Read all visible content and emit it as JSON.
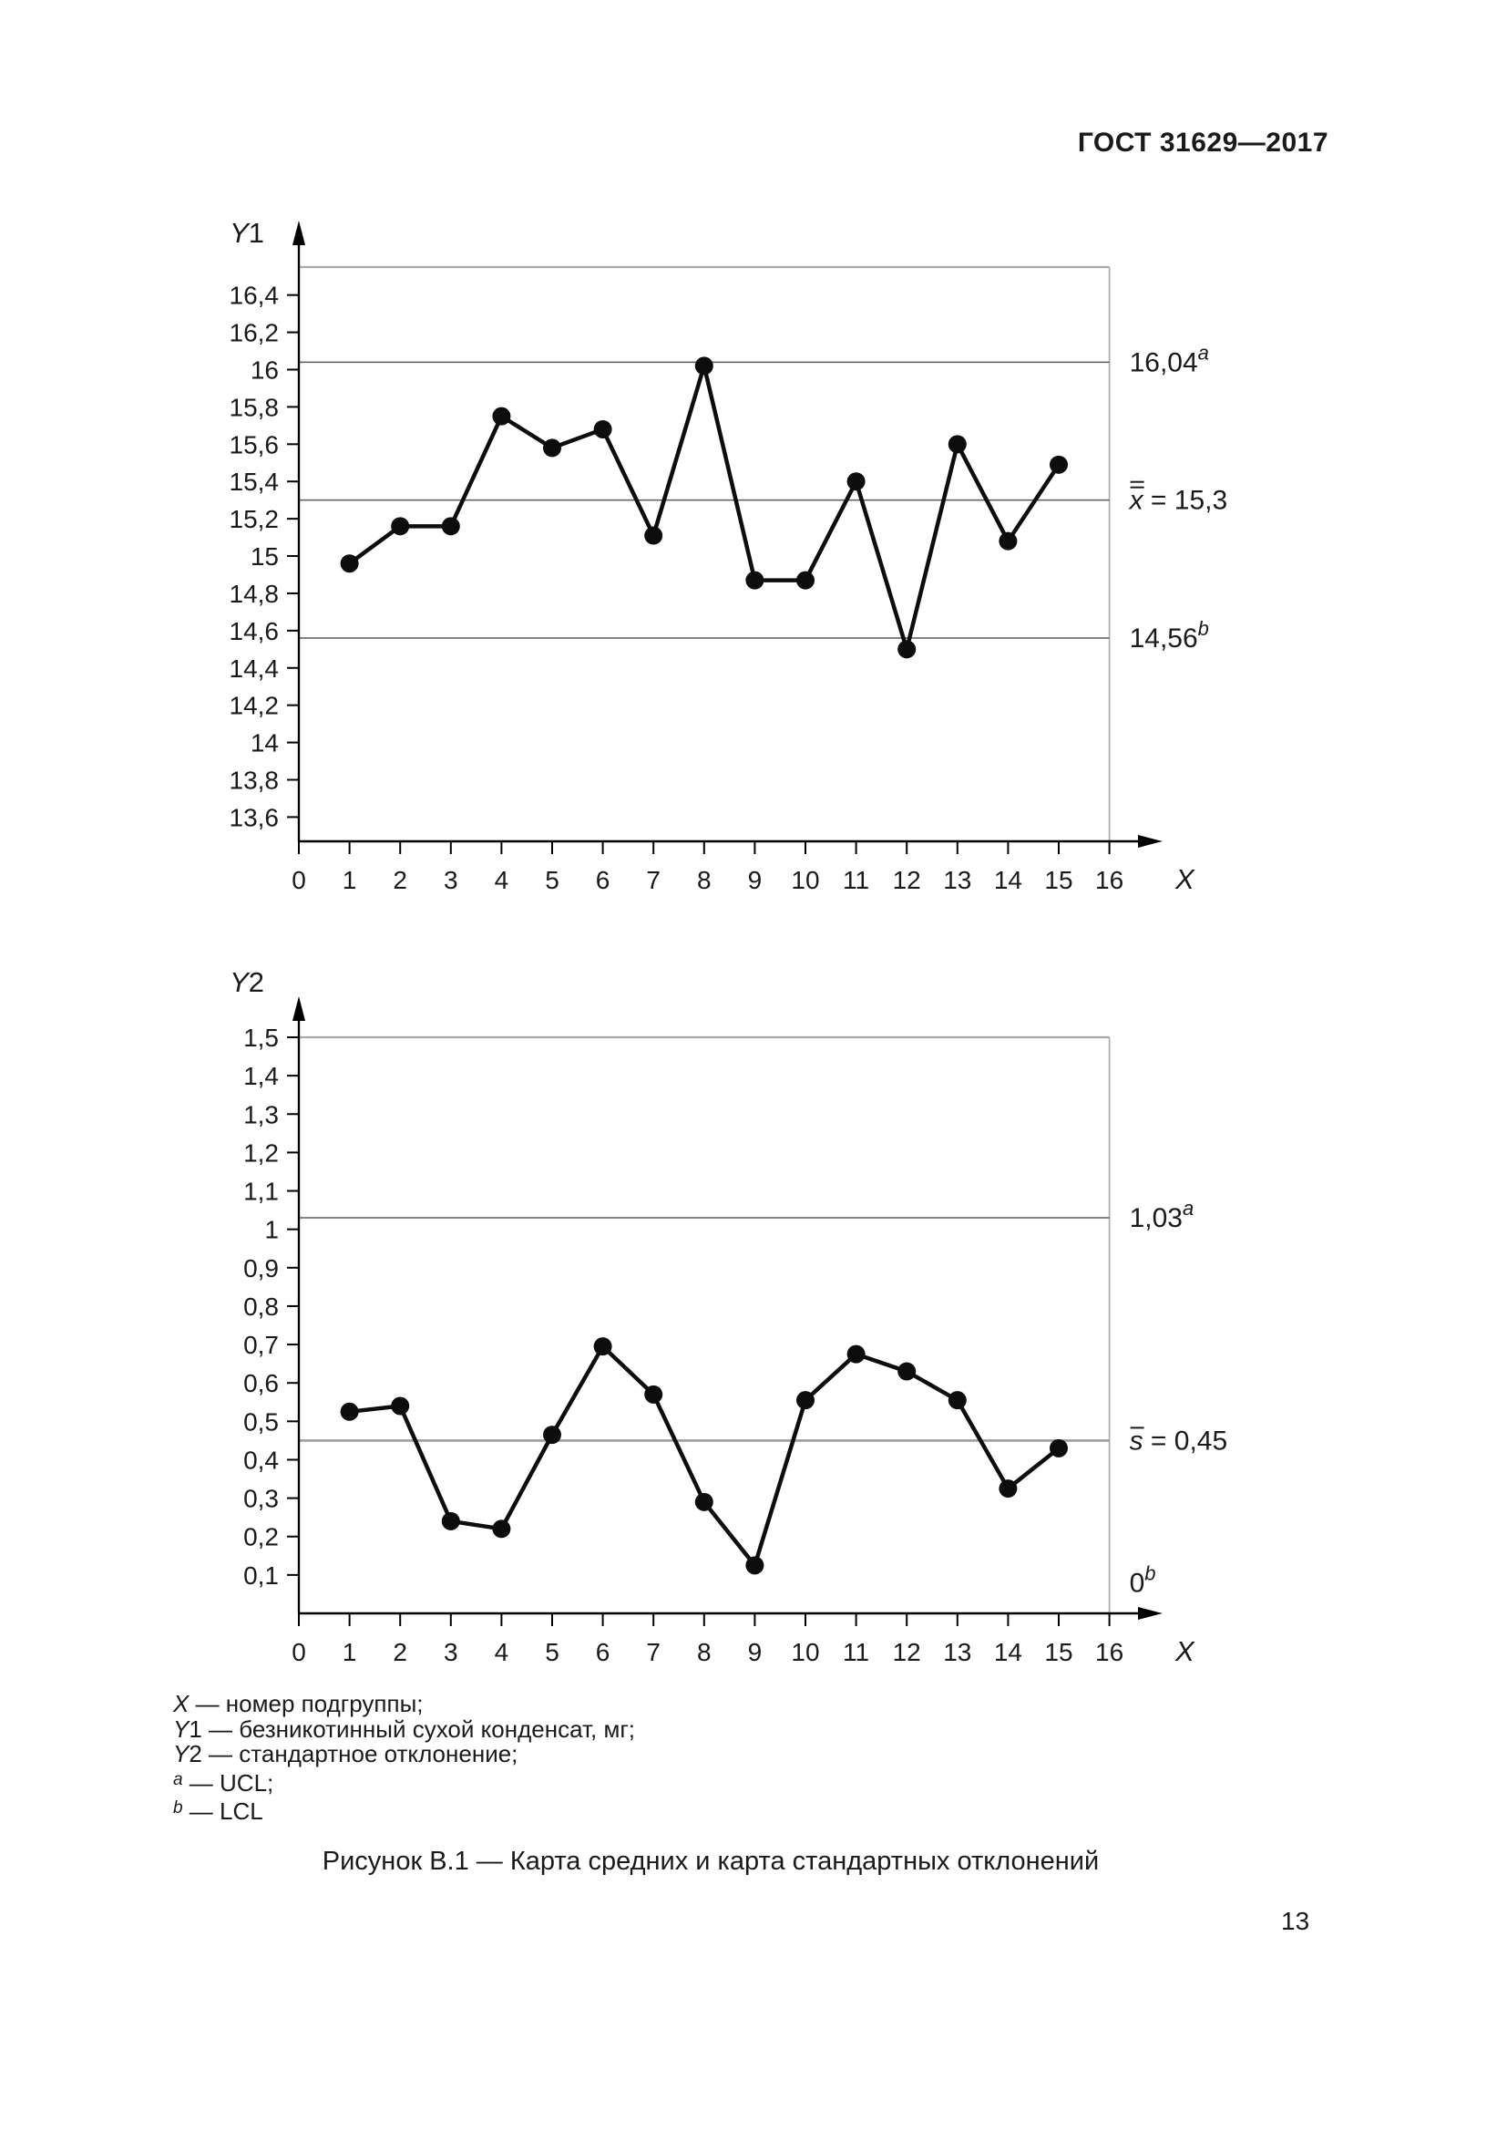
{
  "header": {
    "title": "ГОСТ 31629—2017"
  },
  "caption": "Рисунок В.1 — Карта средних и карта стандартных отклонений",
  "page_number": "13",
  "colors": {
    "text": "#1a1a1a",
    "axis": "#000000",
    "data": "#0d0d0d",
    "frame": "#a8a8a8",
    "limit_dark": "#5a5a5a",
    "center_gray": "#9e9e9e"
  },
  "legend": {
    "items": [
      {
        "prefix_italic": "X",
        "prefix_plain": "",
        "sup": "",
        "text": " — номер подгруппы;"
      },
      {
        "prefix_italic": "Y",
        "prefix_plain": "1",
        "sup": "",
        "text": " — безникотинный сухой конденсат, мг;"
      },
      {
        "prefix_italic": "Y",
        "prefix_plain": "2",
        "sup": "",
        "text": " — стандартное отклонение;"
      },
      {
        "prefix_italic": "",
        "prefix_plain": "",
        "sup": "a",
        "text": " — UCL;"
      },
      {
        "prefix_italic": "",
        "prefix_plain": "",
        "sup": "b",
        "text": " — LCL"
      }
    ]
  },
  "chart_data": [
    {
      "type": "line",
      "name": "mean-chart",
      "y_axis_title": "Y1",
      "x_axis_title": "X",
      "x": [
        1,
        2,
        3,
        4,
        5,
        6,
        7,
        8,
        9,
        10,
        11,
        12,
        13,
        14,
        15
      ],
      "values": [
        14.96,
        15.16,
        15.16,
        15.75,
        15.58,
        15.68,
        15.11,
        16.02,
        14.87,
        14.87,
        15.4,
        14.5,
        15.6,
        15.08,
        15.49
      ],
      "ylim": [
        13.47,
        16.55
      ],
      "xlim": [
        0,
        16
      ],
      "grid": "limits-only",
      "legend_position": "right",
      "yticks": [
        {
          "v": 16.4,
          "t": "16,4"
        },
        {
          "v": 16.2,
          "t": "16,2"
        },
        {
          "v": 16.0,
          "t": "16"
        },
        {
          "v": 15.8,
          "t": "15,8"
        },
        {
          "v": 15.6,
          "t": "15,6"
        },
        {
          "v": 15.4,
          "t": "15,4"
        },
        {
          "v": 15.2,
          "t": "15,2"
        },
        {
          "v": 15.0,
          "t": "15"
        },
        {
          "v": 14.8,
          "t": "14,8"
        },
        {
          "v": 14.6,
          "t": "14,6"
        },
        {
          "v": 14.4,
          "t": "14,4"
        },
        {
          "v": 14.2,
          "t": "14,2"
        },
        {
          "v": 14.0,
          "t": "14"
        },
        {
          "v": 13.8,
          "t": "13,8"
        },
        {
          "v": 13.6,
          "t": "13,6"
        }
      ],
      "xticks": [
        "0",
        "1",
        "2",
        "3",
        "4",
        "5",
        "6",
        "7",
        "8",
        "9",
        "10",
        "11",
        "12",
        "13",
        "14",
        "15",
        "16"
      ],
      "ref_lines": [
        {
          "v": 16.04,
          "text": "16,04",
          "sup": "a",
          "tone": "dark",
          "line": true
        },
        {
          "v": 15.3,
          "bar": "x",
          "bars": 2,
          "text": " = 15,3",
          "tone": "dark",
          "line": true
        },
        {
          "v": 14.56,
          "text": "14,56",
          "sup": "b",
          "tone": "dark",
          "line": true
        }
      ]
    },
    {
      "type": "line",
      "name": "stddev-chart",
      "y_axis_title": "Y2",
      "x_axis_title": "X",
      "x": [
        1,
        2,
        3,
        4,
        5,
        6,
        7,
        8,
        9,
        10,
        11,
        12,
        13,
        14,
        15
      ],
      "values": [
        0.525,
        0.54,
        0.24,
        0.22,
        0.465,
        0.695,
        0.57,
        0.29,
        0.125,
        0.555,
        0.675,
        0.63,
        0.555,
        0.325,
        0.43
      ],
      "ylim": [
        0,
        1.5
      ],
      "xlim": [
        0,
        16
      ],
      "grid": "limits-only",
      "legend_position": "right",
      "yticks": [
        {
          "v": 1.5,
          "t": "1,5"
        },
        {
          "v": 1.4,
          "t": "1,4"
        },
        {
          "v": 1.3,
          "t": "1,3"
        },
        {
          "v": 1.2,
          "t": "1,2"
        },
        {
          "v": 1.1,
          "t": "1,1"
        },
        {
          "v": 1.0,
          "t": "1"
        },
        {
          "v": 0.9,
          "t": "0,9"
        },
        {
          "v": 0.8,
          "t": "0,8"
        },
        {
          "v": 0.7,
          "t": "0,7"
        },
        {
          "v": 0.6,
          "t": "0,6"
        },
        {
          "v": 0.5,
          "t": "0,5"
        },
        {
          "v": 0.4,
          "t": "0,4"
        },
        {
          "v": 0.3,
          "t": "0,3"
        },
        {
          "v": 0.2,
          "t": "0,2"
        },
        {
          "v": 0.1,
          "t": "0,1"
        }
      ],
      "xticks": [
        "0",
        "1",
        "2",
        "3",
        "4",
        "5",
        "6",
        "7",
        "8",
        "9",
        "10",
        "11",
        "12",
        "13",
        "14",
        "15",
        "16"
      ],
      "ref_lines": [
        {
          "v": 1.03,
          "text": "1,03",
          "sup": "a",
          "tone": "dark",
          "line": true
        },
        {
          "v": 0.45,
          "bar": "s",
          "bars": 1,
          "text": " = 0,45",
          "tone": "gray",
          "line": true
        },
        {
          "v": 0,
          "text": "0",
          "sup": "b",
          "tone": "dark",
          "line": false,
          "label_v": 0.08
        }
      ]
    }
  ]
}
